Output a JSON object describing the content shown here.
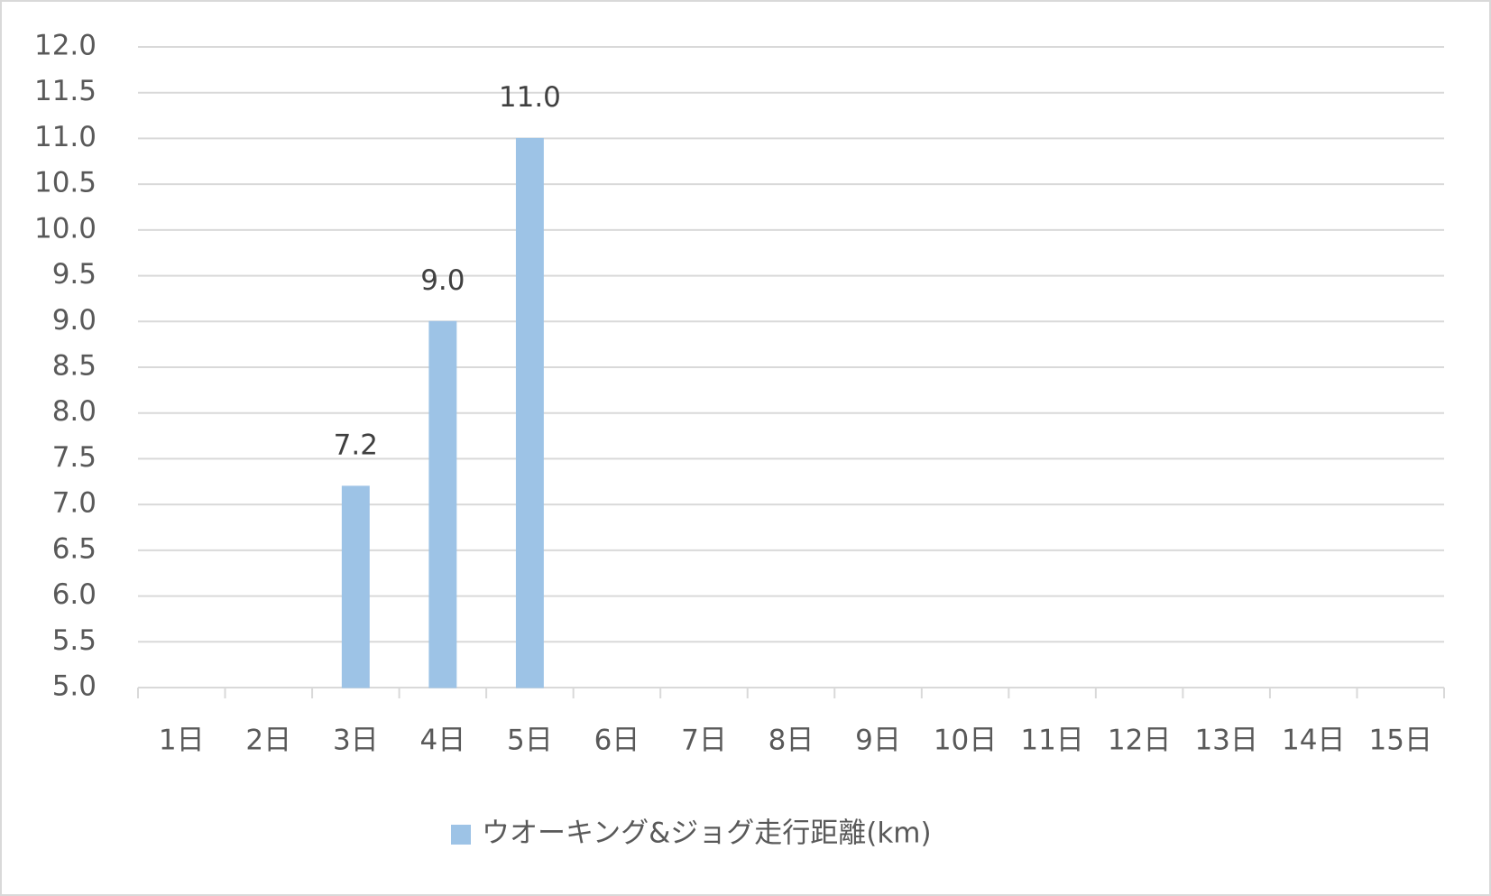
{
  "chart_data": {
    "type": "bar",
    "categories": [
      "1日",
      "2日",
      "3日",
      "4日",
      "5日",
      "6日",
      "7日",
      "8日",
      "9日",
      "10日",
      "11日",
      "12日",
      "13日",
      "14日",
      "15日"
    ],
    "series": [
      {
        "name": "ウオーキング&ジョグ走行距離(km)",
        "color": "#9dc3e6",
        "values": [
          5,
          5,
          7.2,
          9,
          11,
          null,
          null,
          null,
          null,
          null,
          null,
          null,
          null,
          null,
          null
        ],
        "value_labels": [
          null,
          null,
          "7.2",
          "9.0",
          "11.0",
          null,
          null,
          null,
          null,
          null,
          null,
          null,
          null,
          null,
          null
        ]
      }
    ],
    "ylim": [
      5,
      12
    ],
    "yticks": [
      {
        "value": 5,
        "label": "5.0"
      },
      {
        "value": 5.5,
        "label": "5.5"
      },
      {
        "value": 6,
        "label": "6.0"
      },
      {
        "value": 6.5,
        "label": "6.5"
      },
      {
        "value": 7,
        "label": "7.0"
      },
      {
        "value": 7.5,
        "label": "7.5"
      },
      {
        "value": 8,
        "label": "8.0"
      },
      {
        "value": 8.5,
        "label": "8.5"
      },
      {
        "value": 9,
        "label": "9.0"
      },
      {
        "value": 9.5,
        "label": "9.5"
      },
      {
        "value": 10,
        "label": "10.0"
      },
      {
        "value": 10.5,
        "label": "10.5"
      },
      {
        "value": 11,
        "label": "11.0"
      },
      {
        "value": 11.5,
        "label": "11.5"
      },
      {
        "value": 12,
        "label": "12.0"
      }
    ],
    "grid": true,
    "legend": "bottom"
  }
}
